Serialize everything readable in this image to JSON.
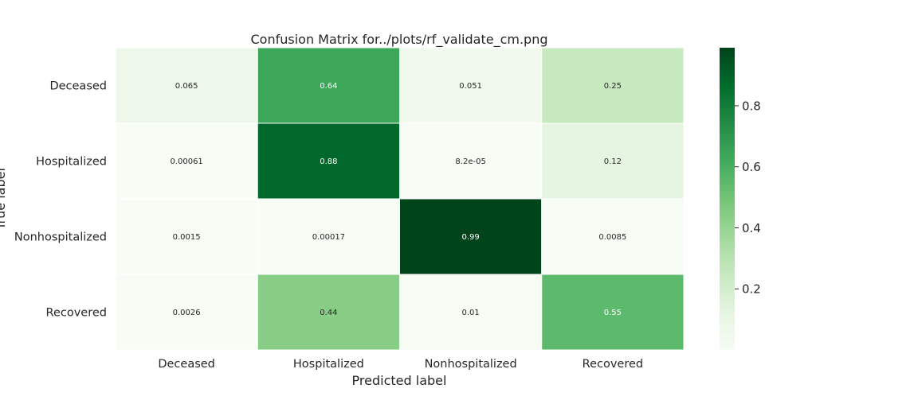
{
  "chart_data": {
    "type": "heatmap",
    "title": "Confusion Matrix for../plots/rf_validate_cm.png",
    "xlabel": "Predicted label",
    "ylabel": "True label",
    "x_categories": [
      "Deceased",
      "Hospitalized",
      "Nonhospitalized",
      "Recovered"
    ],
    "y_categories": [
      "Deceased",
      "Hospitalized",
      "Nonhospitalized",
      "Recovered"
    ],
    "values": [
      [
        0.065,
        0.64,
        0.051,
        0.25
      ],
      [
        0.00061,
        0.88,
        8.2e-05,
        0.12
      ],
      [
        0.0015,
        0.00017,
        0.99,
        0.0085
      ],
      [
        0.0026,
        0.44,
        0.01,
        0.55
      ]
    ],
    "cell_labels": [
      [
        "0.065",
        "0.64",
        "0.051",
        "0.25"
      ],
      [
        "0.00061",
        "0.88",
        "8.2e-05",
        "0.12"
      ],
      [
        "0.0015",
        "0.00017",
        "0.99",
        "0.0085"
      ],
      [
        "0.0026",
        "0.44",
        "0.01",
        "0.55"
      ]
    ],
    "colormap": "Greens",
    "colorbar": {
      "range": [
        0,
        0.99
      ],
      "ticks": [
        0.2,
        0.4,
        0.6,
        0.8
      ],
      "tick_labels": [
        "0.2",
        "0.4",
        "0.6",
        "0.8"
      ]
    },
    "colors": {
      "low": "#f7fcf5",
      "high": "#00441b",
      "text_dark": "#262626",
      "text_light": "#ffffff"
    }
  }
}
